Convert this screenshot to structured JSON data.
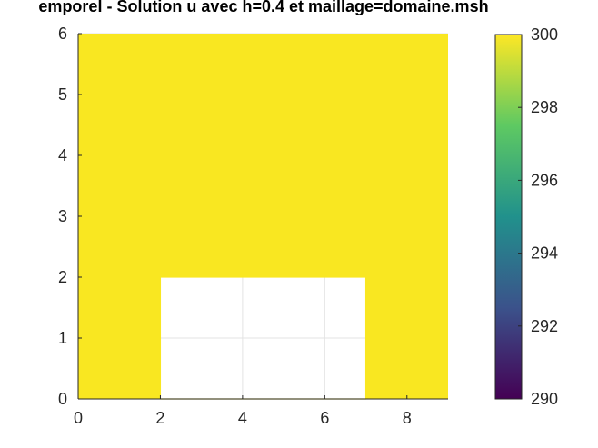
{
  "chart_data": {
    "type": "heatmap",
    "title": "emporel - Solution u avec h=0.4 et maillage=domaine.msh",
    "xlabel": "",
    "ylabel": "",
    "xlim": [
      0,
      9
    ],
    "ylim": [
      0,
      6
    ],
    "x_ticks": [
      "0",
      "2",
      "4",
      "6",
      "8"
    ],
    "y_ticks": [
      "0",
      "1",
      "2",
      "3",
      "4",
      "5",
      "6"
    ],
    "grid": true,
    "field_value": 300,
    "hole": {
      "x": [
        2,
        7
      ],
      "y": [
        0,
        2
      ]
    },
    "colorbar": {
      "range": [
        290,
        300
      ],
      "ticks": [
        "290",
        "292",
        "294",
        "296",
        "298",
        "300"
      ],
      "colormap": "viridis",
      "colors": [
        "#440154",
        "#3b528b",
        "#21918c",
        "#5ec962",
        "#fde725"
      ]
    },
    "colors": {
      "field": "#f9e721",
      "hole": "#ffffff",
      "grid": "#e3e3e3",
      "axis": "#262626"
    }
  }
}
